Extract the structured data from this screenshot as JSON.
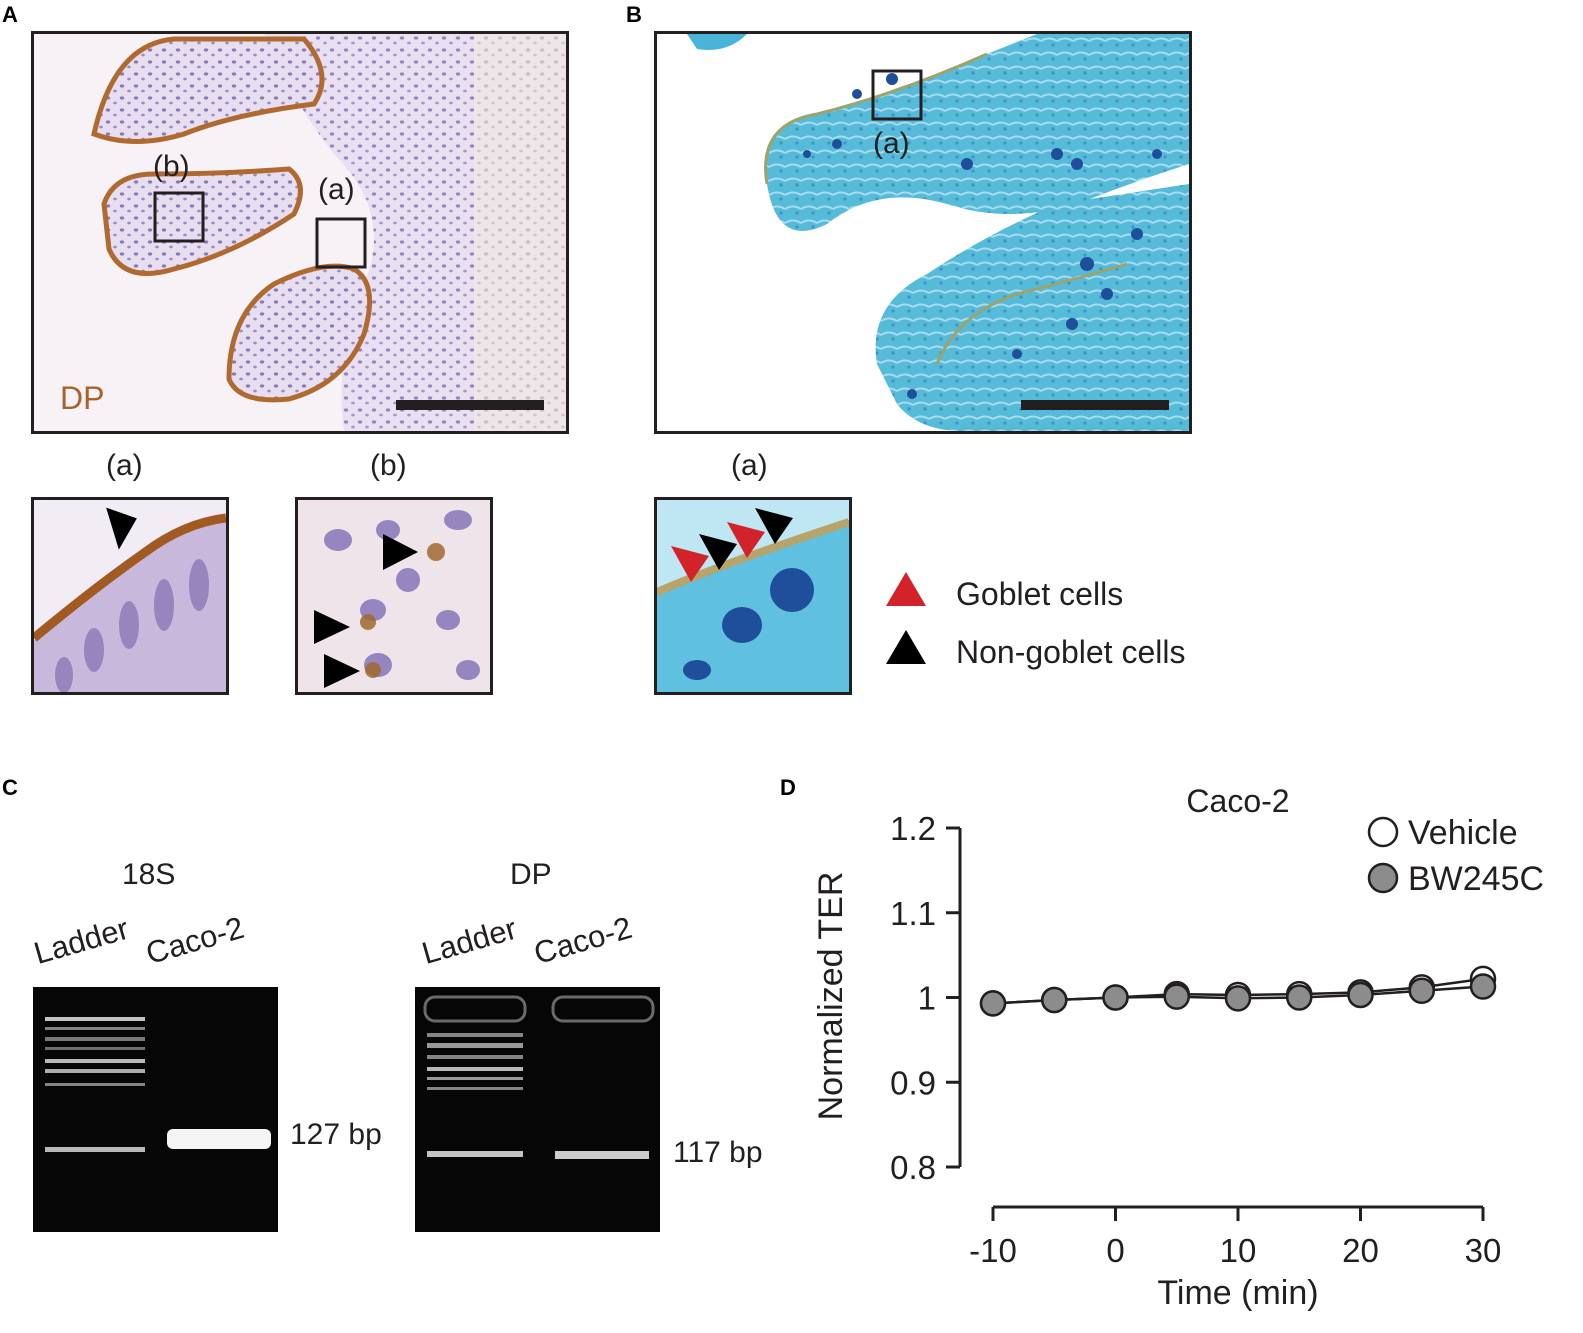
{
  "panels": {
    "A": {
      "letter": "A",
      "stain_label": "DP",
      "box_a": "(a)",
      "box_b": "(b)",
      "inset_a_label": "(a)",
      "inset_b_label": "(b)",
      "colors": {
        "stain": "#a8622c",
        "hematoxylin": "#8a7bb8"
      }
    },
    "B": {
      "letter": "B",
      "box_a": "(a)",
      "inset_a_label": "(a)",
      "legend": [
        {
          "label": "Goblet cells",
          "color": "#d2232a"
        },
        {
          "label": "Non-goblet cells",
          "color": "#000000"
        }
      ],
      "colors": {
        "background": "#4ab4d8",
        "goblet": "#1f4e9a"
      }
    },
    "C": {
      "letter": "C",
      "gels": [
        {
          "title": "18S",
          "lanes": [
            "Ladder",
            "Caco-2"
          ],
          "band_label": "127 bp"
        },
        {
          "title": "DP",
          "lanes": [
            "Ladder",
            "Caco-2"
          ],
          "band_label": "117 bp"
        }
      ]
    },
    "D": {
      "letter": "D"
    }
  },
  "chart_data": {
    "type": "line",
    "title": "Caco-2",
    "xlabel": "Time (min)",
    "ylabel": "Normalized TER",
    "xlim": [
      -10,
      30
    ],
    "ylim": [
      0.8,
      1.2
    ],
    "xticks": [
      -10,
      0,
      10,
      20,
      30
    ],
    "xtick_labels": [
      "-10",
      "0",
      "10",
      "20",
      "30"
    ],
    "yticks": [
      0.8,
      0.9,
      1.0,
      1.1,
      1.2
    ],
    "ytick_labels": [
      "0.8",
      "0.9",
      "1",
      "1.1",
      "1.2"
    ],
    "legend_position": "top-right",
    "grid": false,
    "x": [
      -10,
      -5,
      0,
      5,
      10,
      15,
      20,
      25,
      30
    ],
    "series": [
      {
        "name": "Vehicle",
        "marker": "open-circle",
        "color": "#ffffff",
        "values": [
          0.993,
          0.997,
          1.0,
          1.004,
          1.003,
          1.004,
          1.006,
          1.012,
          1.022
        ]
      },
      {
        "name": "BW245C",
        "marker": "filled-circle",
        "color": "#8c8c8c",
        "values": [
          0.993,
          0.997,
          1.0,
          1.001,
          0.999,
          1.0,
          1.003,
          1.008,
          1.013
        ]
      }
    ]
  }
}
